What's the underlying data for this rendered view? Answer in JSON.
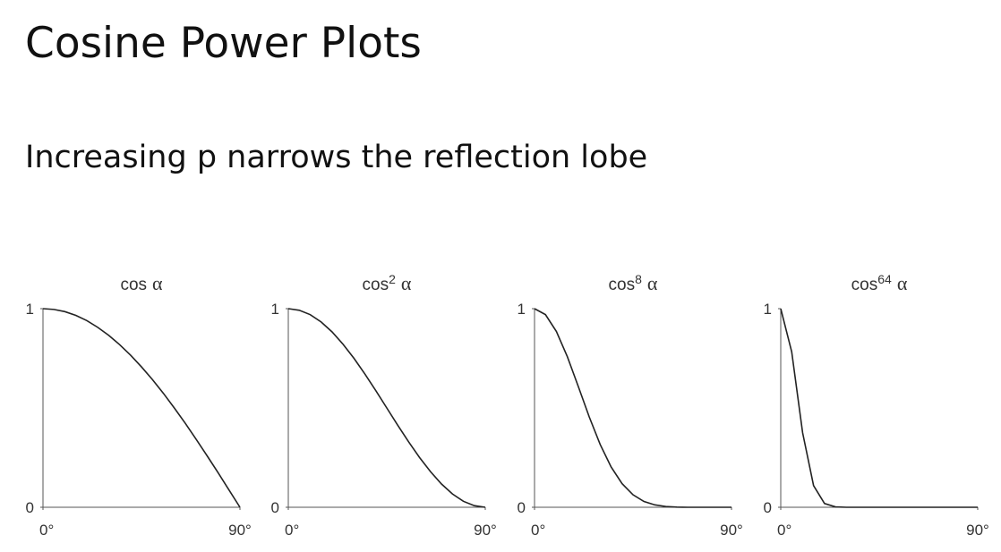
{
  "title": "Cosine Power Plots",
  "subtitle": "Increasing p narrows the reflection lobe",
  "chart_data": [
    {
      "type": "line",
      "title": "cos",
      "variable": "α",
      "color": "#222222",
      "x": [
        0,
        5,
        10,
        15,
        20,
        25,
        30,
        35,
        40,
        45,
        50,
        55,
        60,
        65,
        70,
        75,
        80,
        85,
        90
      ],
      "values": [
        1,
        0.996,
        0.985,
        0.966,
        0.94,
        0.906,
        0.866,
        0.819,
        0.766,
        0.707,
        0.643,
        0.574,
        0.5,
        0.423,
        0.342,
        0.259,
        0.174,
        0.087,
        0
      ],
      "xlim": [
        0,
        90
      ],
      "ylim": [
        0,
        1
      ],
      "yticks": [
        0,
        1
      ],
      "xticks": [
        {
          "value": 0,
          "label": "0°"
        },
        {
          "value": 90,
          "label": "90°"
        }
      ]
    },
    {
      "type": "line",
      "title": "cos",
      "exponent": "2",
      "variable": "α",
      "color": "#222222",
      "x": [
        0,
        5,
        10,
        15,
        20,
        25,
        30,
        35,
        40,
        45,
        50,
        55,
        60,
        65,
        70,
        75,
        80,
        85,
        90
      ],
      "values": [
        1,
        0.992,
        0.97,
        0.933,
        0.883,
        0.821,
        0.75,
        0.671,
        0.587,
        0.5,
        0.413,
        0.329,
        0.25,
        0.179,
        0.117,
        0.067,
        0.03,
        0.008,
        0
      ],
      "xlim": [
        0,
        90
      ],
      "ylim": [
        0,
        1
      ],
      "yticks": [
        0,
        1
      ],
      "xticks": [
        {
          "value": 0,
          "label": "0°"
        },
        {
          "value": 90,
          "label": "90°"
        }
      ]
    },
    {
      "type": "line",
      "title": "cos",
      "exponent": "8",
      "variable": "α",
      "color": "#222222",
      "x": [
        0,
        5,
        10,
        15,
        20,
        25,
        30,
        35,
        40,
        45,
        50,
        55,
        60,
        65,
        70,
        75,
        80,
        85,
        90
      ],
      "values": [
        1,
        0.97,
        0.885,
        0.758,
        0.608,
        0.455,
        0.316,
        0.203,
        0.119,
        0.063,
        0.029,
        0.012,
        0.004,
        0.001,
        0,
        0,
        0,
        0,
        0
      ],
      "xlim": [
        0,
        90
      ],
      "ylim": [
        0,
        1
      ],
      "yticks": [
        0,
        1
      ],
      "xticks": [
        {
          "value": 0,
          "label": "0°"
        },
        {
          "value": 90,
          "label": "90°"
        }
      ]
    },
    {
      "type": "line",
      "title": "cos",
      "exponent": "64",
      "variable": "α",
      "color": "#222222",
      "x": [
        0,
        5,
        10,
        15,
        20,
        25,
        30,
        35,
        40,
        45,
        50,
        55,
        60,
        65,
        70,
        75,
        80,
        85,
        90
      ],
      "values": [
        1,
        0.783,
        0.375,
        0.109,
        0.019,
        0.002,
        0,
        0,
        0,
        0,
        0,
        0,
        0,
        0,
        0,
        0,
        0,
        0,
        0
      ],
      "xlim": [
        0,
        90
      ],
      "ylim": [
        0,
        1
      ],
      "yticks": [
        0,
        1
      ],
      "xticks": [
        {
          "value": 0,
          "label": "0°"
        },
        {
          "value": 90,
          "label": "90°"
        }
      ]
    }
  ]
}
